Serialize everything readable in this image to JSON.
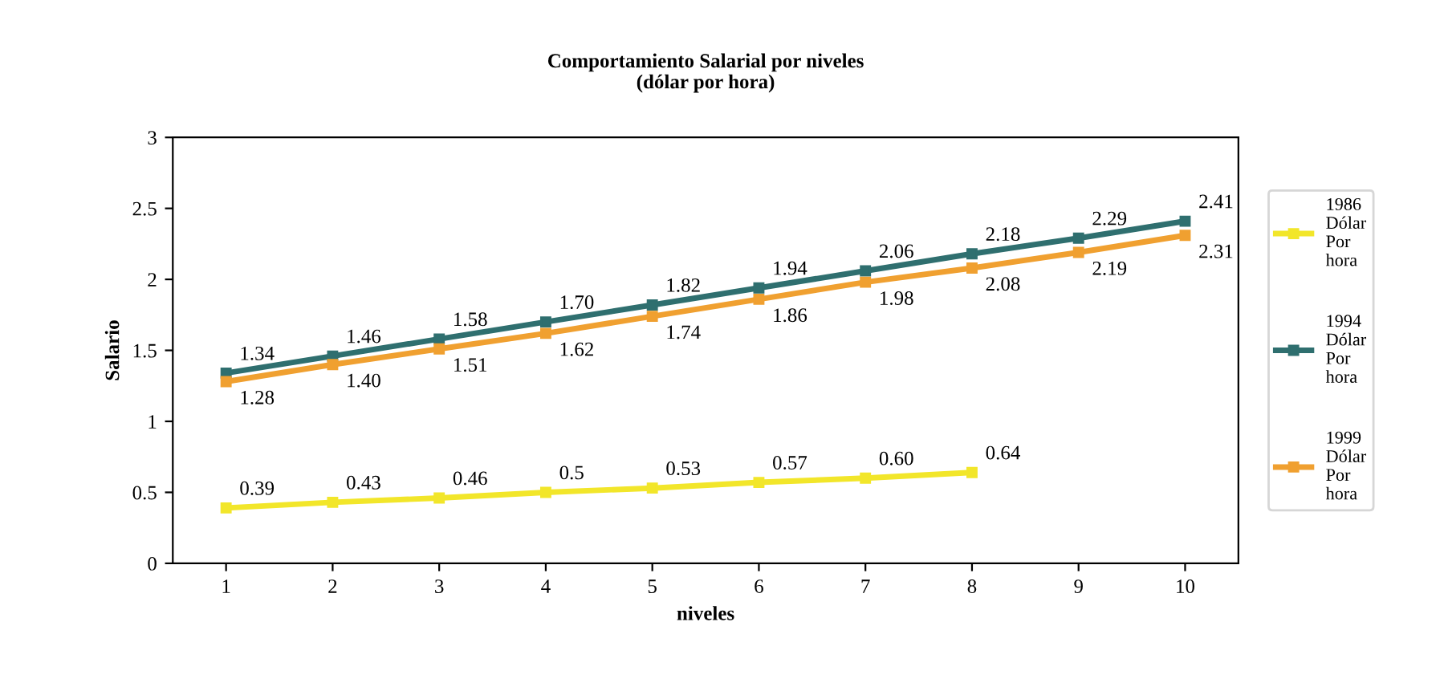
{
  "chart_data": {
    "type": "line",
    "title": "Comportamiento Salarial por niveles\n(dólar por hora)",
    "xlabel": "niveles",
    "ylabel": "Salario",
    "categories": [
      "1",
      "2",
      "3",
      "4",
      "5",
      "6",
      "7",
      "8",
      "9",
      "10"
    ],
    "ylim": [
      0,
      3
    ],
    "yticks": [
      0,
      0.5,
      1,
      1.5,
      2,
      2.5,
      3
    ],
    "grid": false,
    "legend": "right",
    "marker": "square",
    "series": [
      {
        "name": "1986\nDólar\nPor\nhora",
        "color": "#f2e62a",
        "values": [
          0.39,
          0.43,
          0.46,
          0.5,
          0.53,
          0.57,
          0.6,
          0.64,
          null,
          null
        ],
        "value_labels": [
          "0.39",
          "0.43",
          "0.46",
          "0.5",
          "0.53",
          "0.57",
          "0.60",
          "0.64",
          null,
          null
        ]
      },
      {
        "name": "1994\nDólar\nPor\nhora",
        "color": "#2f6f6f",
        "values": [
          1.34,
          1.46,
          1.58,
          1.7,
          1.82,
          1.94,
          2.06,
          2.18,
          2.29,
          2.41
        ],
        "value_labels": [
          "1.34",
          "1.46",
          "1.58",
          "1.70",
          "1.82",
          "1.94",
          "2.06",
          "2.18",
          "2.29",
          "2.41"
        ]
      },
      {
        "name": "1999\nDólar\nPor\nhora",
        "color": "#f0a030",
        "values": [
          1.28,
          1.4,
          1.51,
          1.62,
          1.74,
          1.86,
          1.98,
          2.08,
          2.19,
          2.31
        ],
        "value_labels": [
          "1.28",
          "1.40",
          "1.51",
          "1.62",
          "1.74",
          "1.86",
          "1.98",
          "2.08",
          "2.19",
          "2.31"
        ]
      }
    ]
  }
}
